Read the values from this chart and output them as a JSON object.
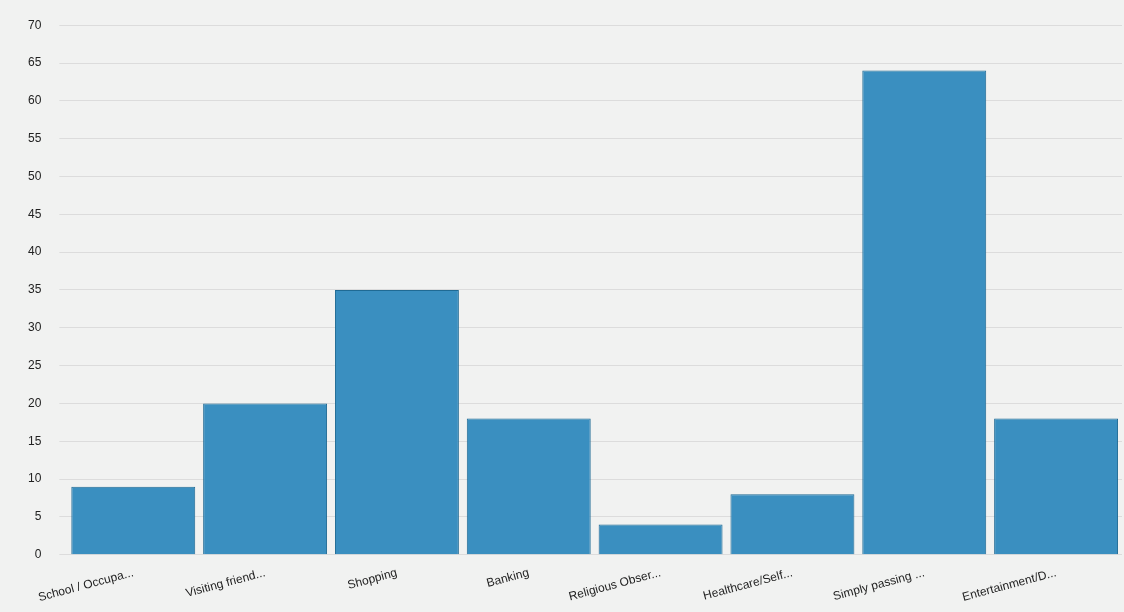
{
  "chart_data": {
    "type": "bar",
    "categories": [
      "School / Occupa...",
      "Visiting friend...",
      "Shopping",
      "Banking",
      "Religious Obser...",
      "Healthcare/Self...",
      "Simply passing ...",
      "Entertainment/D..."
    ],
    "values": [
      9,
      20,
      35,
      18,
      4,
      8,
      64,
      18
    ],
    "color": "#3a8fc0",
    "ylim": [
      0,
      70
    ],
    "yticks": [
      0,
      5,
      10,
      15,
      20,
      25,
      30,
      35,
      40,
      45,
      50,
      55,
      60,
      65,
      70
    ],
    "grid": "y"
  }
}
